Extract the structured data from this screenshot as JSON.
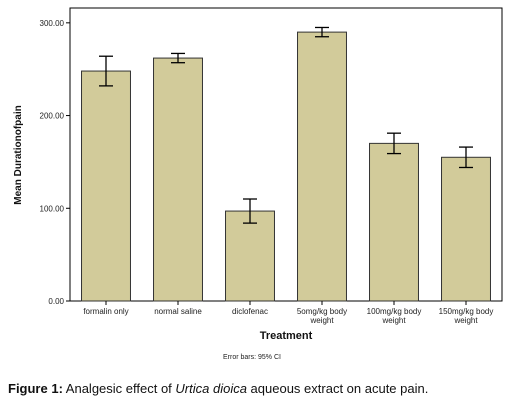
{
  "chart_data": {
    "type": "bar",
    "categories": [
      "formalin only",
      "normal saline",
      "diclofenac",
      "5omg/kg body weight",
      "100mg/kg body weight",
      "150mg/kg body weight"
    ],
    "category_lines": [
      [
        "formalin only"
      ],
      [
        "normal saline"
      ],
      [
        "diclofenac"
      ],
      [
        "5omg/kg body",
        "weight"
      ],
      [
        "100mg/kg body",
        "weight"
      ],
      [
        "150mg/kg body",
        "weight"
      ]
    ],
    "values": [
      248,
      262,
      97,
      290,
      170,
      155
    ],
    "error_low": [
      232,
      257,
      84,
      285,
      159,
      144
    ],
    "error_high": [
      264,
      267,
      110,
      295,
      181,
      166
    ],
    "y_ticks": [
      "0.00",
      "100.00",
      "200.00",
      "300.00"
    ],
    "ylim": [
      0,
      300
    ],
    "xlabel": "Treatment",
    "ylabel": "Mean Durationofpain",
    "note": "Error bars: 95% CI",
    "bar_color": "#d2cb9a",
    "bar_edge_color": "#333333",
    "plot_bg": "#ffffff",
    "grid": false
  },
  "caption": {
    "label": "Figure 1:",
    "text_before": " Analgesic effect of ",
    "species": "Urtica dioica",
    "text_after": " aqueous extract on acute pain."
  }
}
